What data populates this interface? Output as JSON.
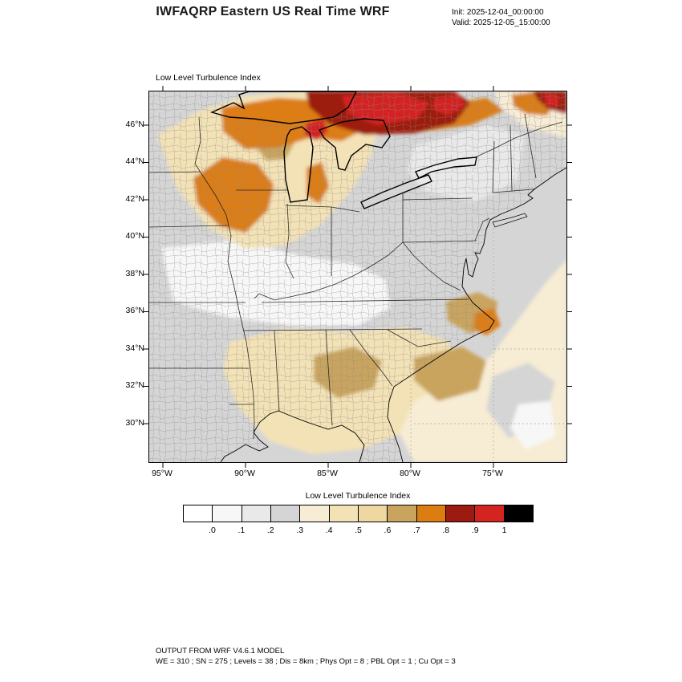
{
  "header": {
    "title": "IWFAQRP Eastern US Real Time WRF",
    "init_label": "Init: 2025-12-04_00:00:00",
    "valid_label": "Valid: 2025-12-05_15:00:00"
  },
  "map": {
    "field_title": "Low Level Turbulence Index",
    "y_tick_labels": [
      "46°N",
      "44°N",
      "42°N",
      "40°N",
      "38°N",
      "36°N",
      "34°N",
      "32°N",
      "30°N"
    ],
    "x_tick_labels": [
      "95°W",
      "90°W",
      "85°W",
      "80°W",
      "75°W"
    ]
  },
  "colorbar": {
    "title": "Low Level Turbulence Index",
    "tick_labels": [
      ".0",
      ".1",
      ".2",
      ".3",
      ".4",
      ".5",
      ".6",
      ".7",
      ".8",
      ".9",
      "1"
    ],
    "colors": [
      "#ffffff",
      "#f7f7f7",
      "#e9e9e9",
      "#d5d5d5",
      "#f7ecd4",
      "#f3e2b6",
      "#eed7a0",
      "#c9a45e",
      "#dc7d12",
      "#9c1a10",
      "#d42420",
      "#000000"
    ]
  },
  "footer": {
    "line1": "OUTPUT FROM WRF V4.6.1 MODEL",
    "line2": "WE = 310 ; SN = 275 ; Levels = 38 ; Dis = 8km ; Phys Opt = 8 ; PBL Opt = 1 ; Cu Opt = 3"
  }
}
